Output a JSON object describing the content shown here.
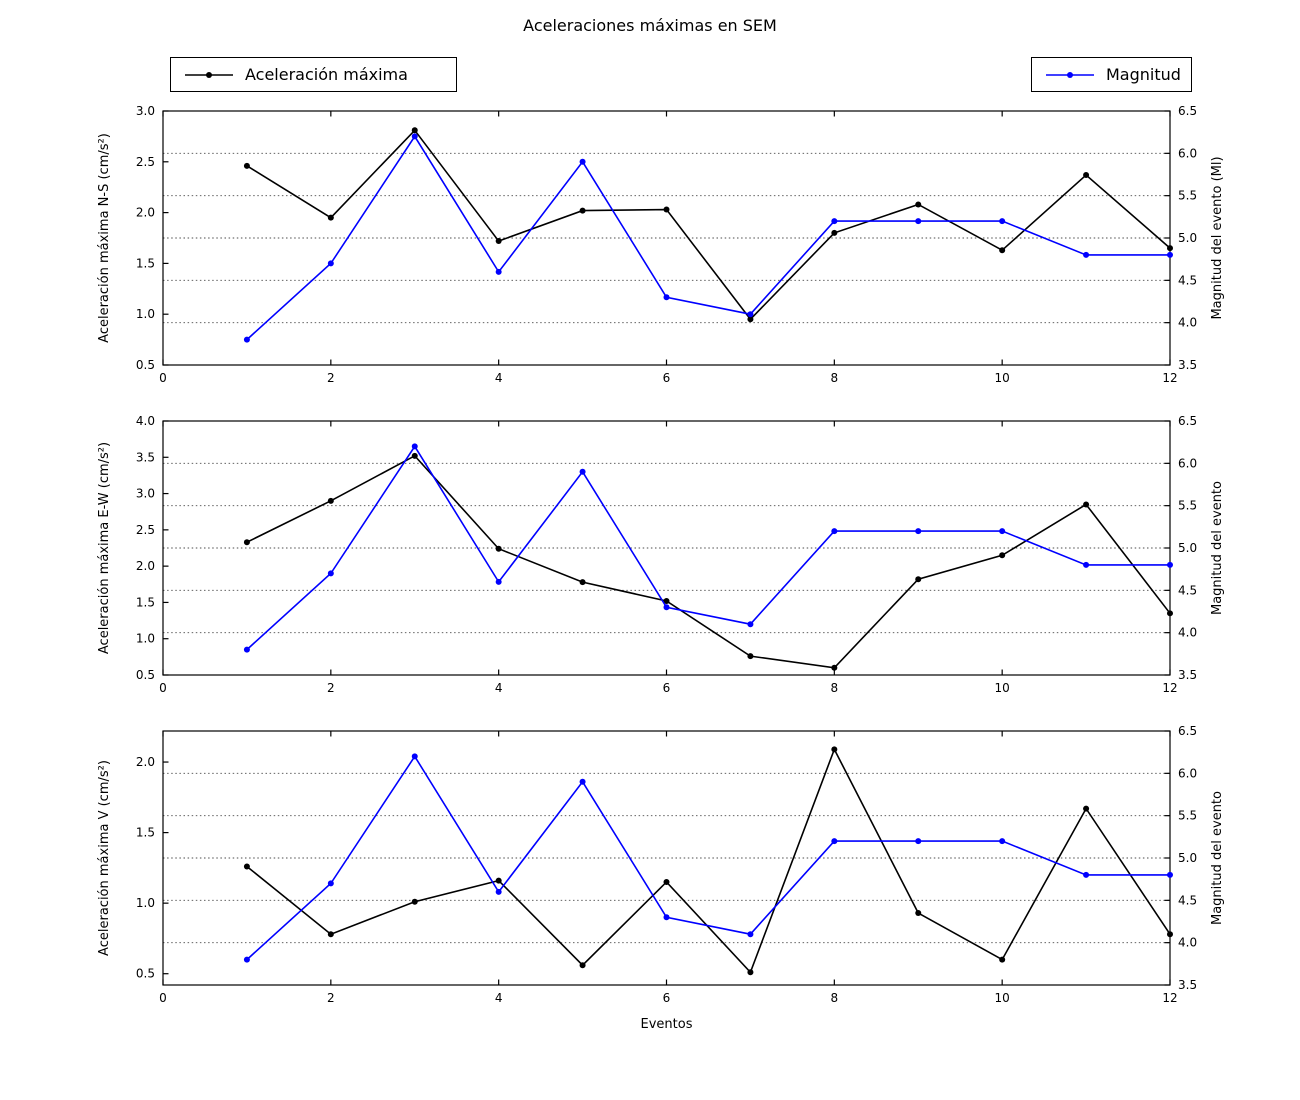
{
  "title": "Aceleraciones máximas en SEM",
  "xlabel": "Eventos",
  "legend": [
    {
      "label": "Aceleración máxima",
      "color": "#000000"
    },
    {
      "label": "Magnitud",
      "color": "#0000ff"
    }
  ],
  "colors": {
    "acceleration": "#000000",
    "magnitude": "#0000ff",
    "grid": "#000000",
    "background": "#ffffff"
  },
  "chart_data": [
    {
      "type": "line",
      "ylabel_left": "Aceleración máxima N-S (cm/s²)",
      "ylabel_right": "Magnitud del evento (Ml)",
      "ylim_left": [
        0.5,
        3.0
      ],
      "yticks_left": [
        0.5,
        1.0,
        1.5,
        2.0,
        2.5,
        3.0
      ],
      "ylim_right": [
        3.5,
        6.5
      ],
      "yticks_right": [
        3.5,
        4.0,
        4.5,
        5.0,
        5.5,
        6.0,
        6.5
      ],
      "xlim": [
        0,
        12
      ],
      "xticks": [
        0,
        2,
        4,
        6,
        8,
        10,
        12
      ],
      "x": [
        1,
        2,
        3,
        4,
        5,
        6,
        7,
        8,
        9,
        10,
        11,
        12
      ],
      "series": [
        {
          "name": "Aceleración máxima",
          "axis": "left",
          "color": "#000000",
          "values": [
            2.46,
            1.95,
            2.81,
            1.72,
            2.02,
            2.03,
            0.95,
            1.8,
            2.08,
            1.63,
            2.37,
            1.65
          ]
        },
        {
          "name": "Magnitud",
          "axis": "right",
          "color": "#0000ff",
          "values": [
            3.8,
            4.7,
            6.2,
            4.6,
            5.9,
            4.3,
            4.1,
            5.2,
            5.2,
            5.2,
            4.8,
            4.8
          ]
        }
      ]
    },
    {
      "type": "line",
      "ylabel_left": "Aceleración máxima E-W (cm/s²)",
      "ylabel_right": "Magnitud del evento",
      "ylim_left": [
        0.5,
        4.0
      ],
      "yticks_left": [
        0.5,
        1.0,
        1.5,
        2.0,
        2.5,
        3.0,
        3.5,
        4.0
      ],
      "ylim_right": [
        3.5,
        6.5
      ],
      "yticks_right": [
        3.5,
        4.0,
        4.5,
        5.0,
        5.5,
        6.0,
        6.5
      ],
      "xlim": [
        0,
        12
      ],
      "xticks": [
        0,
        2,
        4,
        6,
        8,
        10,
        12
      ],
      "x": [
        1,
        2,
        3,
        4,
        5,
        6,
        7,
        8,
        9,
        10,
        11,
        12
      ],
      "series": [
        {
          "name": "Aceleración máxima",
          "axis": "left",
          "color": "#000000",
          "values": [
            2.33,
            2.9,
            3.52,
            2.24,
            1.78,
            1.52,
            0.76,
            0.6,
            1.82,
            2.15,
            2.85,
            1.35
          ]
        },
        {
          "name": "Magnitud",
          "axis": "right",
          "color": "#0000ff",
          "values": [
            3.8,
            4.7,
            6.2,
            4.6,
            5.9,
            4.3,
            4.1,
            5.2,
            5.2,
            5.2,
            4.8,
            4.8
          ]
        }
      ]
    },
    {
      "type": "line",
      "ylabel_left": "Aceleración máxima V (cm/s²)",
      "ylabel_right": "Magnitud del evento",
      "ylim_left": [
        0.42,
        2.22
      ],
      "yticks_left": [
        0.5,
        1.0,
        1.5,
        2.0
      ],
      "ylim_right": [
        3.5,
        6.5
      ],
      "yticks_right": [
        3.5,
        4.0,
        4.5,
        5.0,
        5.5,
        6.0,
        6.5
      ],
      "xlim": [
        0,
        12
      ],
      "xticks": [
        0,
        2,
        4,
        6,
        8,
        10,
        12
      ],
      "x": [
        1,
        2,
        3,
        4,
        5,
        6,
        7,
        8,
        9,
        10,
        11,
        12
      ],
      "series": [
        {
          "name": "Aceleración máxima",
          "axis": "left",
          "color": "#000000",
          "values": [
            1.26,
            0.78,
            1.01,
            1.16,
            0.56,
            1.15,
            0.51,
            2.09,
            0.93,
            0.6,
            1.67,
            0.78
          ]
        },
        {
          "name": "Magnitud",
          "axis": "right",
          "color": "#0000ff",
          "values": [
            3.8,
            4.7,
            6.2,
            4.6,
            5.9,
            4.3,
            4.1,
            5.2,
            5.2,
            5.2,
            4.8,
            4.8
          ]
        }
      ]
    }
  ]
}
